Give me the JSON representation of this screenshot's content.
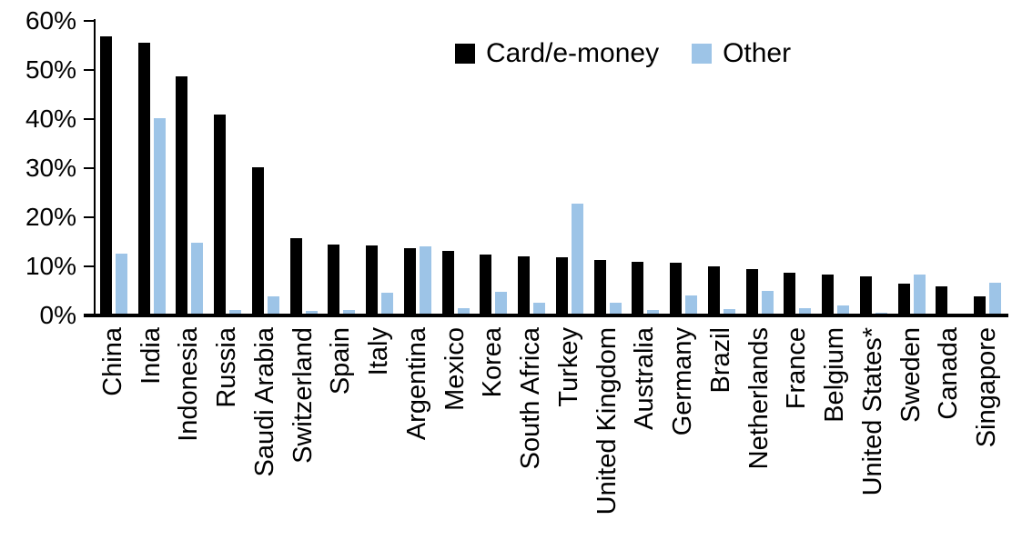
{
  "chart_data": {
    "type": "bar",
    "title": "",
    "xlabel": "",
    "ylabel": "",
    "ylim": [
      0,
      60
    ],
    "grid": false,
    "legend_position": "top-center",
    "yticks": [
      {
        "label": "0%",
        "value": 0
      },
      {
        "label": "10%",
        "value": 10
      },
      {
        "label": "20%",
        "value": 20
      },
      {
        "label": "30%",
        "value": 30
      },
      {
        "label": "40%",
        "value": 40
      },
      {
        "label": "50%",
        "value": 50
      },
      {
        "label": "60%",
        "value": 60
      }
    ],
    "categories": [
      "China",
      "India",
      "Indonesia",
      "Russia",
      "Saudi Arabia",
      "Switzerland",
      "Spain",
      "Italy",
      "Argentina",
      "Mexico",
      "Korea",
      "South Africa",
      "Turkey",
      "United Kingdom",
      "Australia",
      "Germany",
      "Brazil",
      "Netherlands",
      "France",
      "Belgium",
      "United States*",
      "Sweden",
      "Canada",
      "Singapore"
    ],
    "series": [
      {
        "name": "Card/e-money",
        "color": "#000000",
        "values": [
          56.5,
          55.2,
          48.3,
          40.6,
          29.8,
          15.4,
          14.0,
          13.9,
          13.3,
          12.8,
          12.0,
          11.6,
          11.5,
          10.9,
          10.6,
          10.4,
          9.7,
          9.1,
          8.3,
          7.9,
          7.6,
          6.2,
          5.6,
          3.6
        ]
      },
      {
        "name": "Other",
        "color": "#9DC4E7",
        "values": [
          12.2,
          39.8,
          14.4,
          0.8,
          3.6,
          0.6,
          0.8,
          4.3,
          13.7,
          1.2,
          4.4,
          2.2,
          22.4,
          2.2,
          0.8,
          3.7,
          1.0,
          4.6,
          1.2,
          1.7,
          0.2,
          7.9,
          0.0,
          6.3
        ]
      }
    ],
    "axis_color": "#000000",
    "background_color": "#ffffff"
  }
}
